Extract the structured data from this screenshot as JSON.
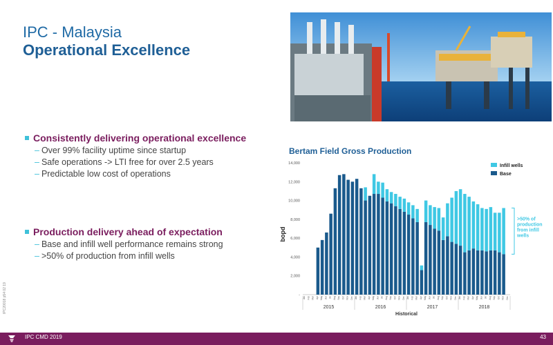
{
  "header": {
    "title": "IPC - Malaysia",
    "subtitle": "Operational Excellence"
  },
  "photo": {
    "icon": "offshore-platform-photo"
  },
  "bullets": [
    {
      "heading": "Consistently delivering operational excellence",
      "items": [
        "Over 99% facility uptime since startup",
        "Safe operations -> LTI free for over 2.5 years",
        "Predictable low cost of operations"
      ]
    },
    {
      "heading": "Production delivery ahead of expectation",
      "items": [
        "Base and infill well performance remains strong",
        ">50% of production from infill wells"
      ]
    }
  ],
  "footer": {
    "left": "IPC CMD 2019",
    "right": "43",
    "ref": "IPC20018 p54 02 19"
  },
  "colors": {
    "base": "#1a5a8c",
    "infill": "#3fc8e4",
    "brand": "#7a1d5e",
    "title": "#1f5f96"
  },
  "chart_data": {
    "type": "bar",
    "title": "Bertam Field Gross Production",
    "ylabel": "bopd",
    "xlabel": "Historical",
    "ylim": [
      0,
      14000
    ],
    "yticks": [
      "-",
      "2,000",
      "4,000",
      "6,000",
      "8,000",
      "10,000",
      "12,000",
      "14,000"
    ],
    "years": [
      {
        "label": "2015",
        "center_month": 6
      },
      {
        "label": "2016",
        "center_month": 18
      },
      {
        "label": "2017",
        "center_month": 30
      },
      {
        "label": "2018",
        "center_month": 42
      }
    ],
    "categories": [
      "Jan",
      "Feb",
      "Mar",
      "Apr",
      "May",
      "Jun",
      "Jul",
      "Aug",
      "Sep",
      "Oct",
      "Nov",
      "Dec",
      "Jan",
      "Feb",
      "Mar",
      "Apr",
      "May",
      "Jun",
      "Jul",
      "Aug",
      "Sep",
      "Oct",
      "Nov",
      "Dec",
      "Jan",
      "Feb",
      "Mar",
      "Apr",
      "May",
      "Jun",
      "Jul",
      "Aug",
      "Sep",
      "Oct",
      "Nov",
      "Dec",
      "Jan",
      "Feb",
      "Mar",
      "Apr",
      "May",
      "Jun",
      "Jul",
      "Aug",
      "Sep",
      "Oct",
      "Nov",
      "Dec"
    ],
    "series": [
      {
        "name": "Base",
        "values": [
          0,
          0,
          0,
          5000,
          5800,
          6600,
          8600,
          11300,
          12700,
          12800,
          12200,
          12000,
          12300,
          11300,
          10000,
          10500,
          10700,
          10700,
          10300,
          9900,
          9700,
          9400,
          9100,
          8800,
          8500,
          8100,
          7700,
          2600,
          7700,
          7400,
          7000,
          6800,
          5800,
          6200,
          5600,
          5400,
          5200,
          4500,
          4700,
          4900,
          4700,
          4700,
          4600,
          4700,
          4700,
          4500,
          4300,
          0
        ]
      },
      {
        "name": "Infill wells",
        "values": [
          0,
          0,
          0,
          0,
          0,
          0,
          0,
          0,
          0,
          0,
          0,
          0,
          0,
          0,
          1400,
          0,
          2100,
          1300,
          1600,
          1300,
          1200,
          1300,
          1300,
          1400,
          1300,
          1400,
          1400,
          500,
          2300,
          2100,
          2300,
          2400,
          2400,
          3500,
          4700,
          5600,
          6000,
          6200,
          5700,
          5000,
          4900,
          4500,
          4500,
          4600,
          4000,
          4200,
          4900,
          0
        ]
      }
    ],
    "legend": [
      "Infill wells",
      "Base"
    ],
    "legend_position": "top-right",
    "annotation": ">50% of production from infill wells",
    "grid": true
  }
}
